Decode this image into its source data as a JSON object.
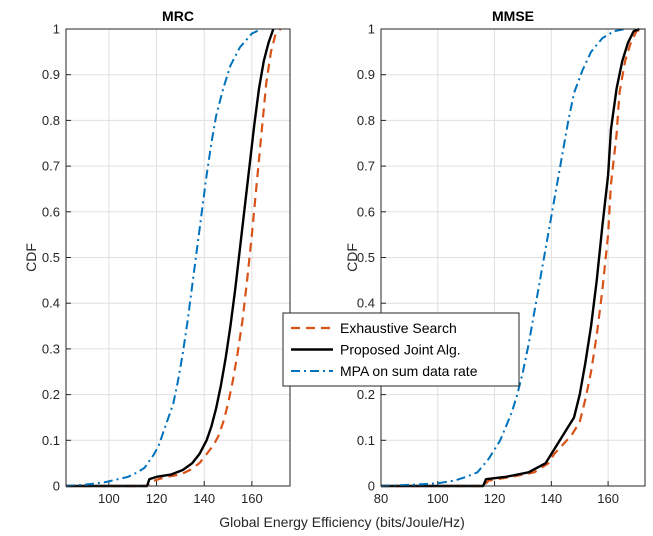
{
  "chart_data": [
    {
      "type": "line",
      "title": "MRC",
      "xlabel": "",
      "ylabel": "CDF",
      "xlim": [
        82,
        176
      ],
      "ylim": [
        0,
        1
      ],
      "xticks": [
        100,
        120,
        140,
        160
      ],
      "yticks": [
        0,
        0.1,
        0.2,
        0.3,
        0.4,
        0.5,
        0.6,
        0.7,
        0.8,
        0.9,
        1
      ],
      "grid": true,
      "series": [
        {
          "name": "Exhaustive Search",
          "color": "#D95319",
          "style": "dashed",
          "points": [
            [
              82,
              0
            ],
            [
              116,
              0
            ],
            [
              118,
              0.01
            ],
            [
              124,
              0.02
            ],
            [
              130,
              0.025
            ],
            [
              134,
              0.035
            ],
            [
              138,
              0.05
            ],
            [
              141,
              0.07
            ],
            [
              144,
              0.09
            ],
            [
              146,
              0.11
            ],
            [
              148,
              0.14
            ],
            [
              150,
              0.18
            ],
            [
              152,
              0.23
            ],
            [
              154,
              0.29
            ],
            [
              156,
              0.36
            ],
            [
              158,
              0.45
            ],
            [
              160,
              0.55
            ],
            [
              162,
              0.66
            ],
            [
              164,
              0.77
            ],
            [
              166,
              0.88
            ],
            [
              168,
              0.95
            ],
            [
              170,
              0.99
            ],
            [
              172,
              1
            ]
          ]
        },
        {
          "name": "Proposed Joint Alg.",
          "color": "#000000",
          "style": "solid",
          "points": [
            [
              82,
              0
            ],
            [
              116,
              0
            ],
            [
              117,
              0.015
            ],
            [
              120,
              0.02
            ],
            [
              126,
              0.025
            ],
            [
              131,
              0.035
            ],
            [
              135,
              0.05
            ],
            [
              138,
              0.07
            ],
            [
              141,
              0.1
            ],
            [
              143,
              0.13
            ],
            [
              145,
              0.17
            ],
            [
              147,
              0.22
            ],
            [
              149,
              0.28
            ],
            [
              151,
              0.35
            ],
            [
              153,
              0.43
            ],
            [
              155,
              0.52
            ],
            [
              157,
              0.61
            ],
            [
              159,
              0.7
            ],
            [
              161,
              0.79
            ],
            [
              163,
              0.87
            ],
            [
              165,
              0.93
            ],
            [
              167,
              0.97
            ],
            [
              169,
              1
            ]
          ]
        },
        {
          "name": "MPA on sum data rate",
          "color": "#0072BD",
          "style": "dashdot",
          "points": [
            [
              82,
              0
            ],
            [
              90,
              0.003
            ],
            [
              98,
              0.008
            ],
            [
              104,
              0.015
            ],
            [
              108,
              0.02
            ],
            [
              112,
              0.03
            ],
            [
              115,
              0.04
            ],
            [
              117,
              0.055
            ],
            [
              119,
              0.07
            ],
            [
              121,
              0.09
            ],
            [
              123,
              0.12
            ],
            [
              125,
              0.15
            ],
            [
              127,
              0.18
            ],
            [
              129,
              0.23
            ],
            [
              131,
              0.29
            ],
            [
              133,
              0.36
            ],
            [
              135,
              0.44
            ],
            [
              137,
              0.52
            ],
            [
              139,
              0.6
            ],
            [
              141,
              0.68
            ],
            [
              143,
              0.75
            ],
            [
              145,
              0.81
            ],
            [
              148,
              0.87
            ],
            [
              151,
              0.92
            ],
            [
              155,
              0.96
            ],
            [
              160,
              0.99
            ],
            [
              164,
              1
            ]
          ]
        }
      ]
    },
    {
      "type": "line",
      "title": "MMSE",
      "xlabel": "",
      "ylabel": "CDF",
      "xlim": [
        80,
        173
      ],
      "ylim": [
        0,
        1
      ],
      "xticks": [
        80,
        100,
        120,
        140,
        160
      ],
      "yticks": [
        0,
        0.1,
        0.2,
        0.3,
        0.4,
        0.5,
        0.6,
        0.7,
        0.8,
        0.9,
        1
      ],
      "grid": true,
      "series": [
        {
          "name": "Exhaustive Search",
          "color": "#D95319",
          "style": "dashed",
          "points": [
            [
              80,
              0
            ],
            [
              116,
              0
            ],
            [
              118,
              0.012
            ],
            [
              126,
              0.02
            ],
            [
              134,
              0.03
            ],
            [
              139,
              0.05
            ],
            [
              141,
              0.07
            ],
            [
              144,
              0.09
            ],
            [
              147,
              0.11
            ],
            [
              150,
              0.14
            ],
            [
              152,
              0.19
            ],
            [
              154,
              0.25
            ],
            [
              156,
              0.33
            ],
            [
              158,
              0.43
            ],
            [
              160,
              0.55
            ],
            [
              161,
              0.66
            ],
            [
              163,
              0.77
            ],
            [
              164,
              0.86
            ],
            [
              166,
              0.93
            ],
            [
              168,
              0.97
            ],
            [
              170,
              0.995
            ],
            [
              172,
              1
            ]
          ]
        },
        {
          "name": "Proposed Joint Alg.",
          "color": "#000000",
          "style": "solid",
          "points": [
            [
              80,
              0
            ],
            [
              116,
              0
            ],
            [
              117,
              0.015
            ],
            [
              124,
              0.02
            ],
            [
              132,
              0.03
            ],
            [
              138,
              0.05
            ],
            [
              140,
              0.07
            ],
            [
              142,
              0.09
            ],
            [
              145,
              0.12
            ],
            [
              148,
              0.15
            ],
            [
              150,
              0.2
            ],
            [
              152,
              0.27
            ],
            [
              154,
              0.35
            ],
            [
              156,
              0.45
            ],
            [
              158,
              0.57
            ],
            [
              160,
              0.68
            ],
            [
              161,
              0.78
            ],
            [
              163,
              0.87
            ],
            [
              165,
              0.93
            ],
            [
              167,
              0.97
            ],
            [
              169,
              0.995
            ],
            [
              171,
              1
            ]
          ]
        },
        {
          "name": "MPA on sum data rate",
          "color": "#0072BD",
          "style": "dashdot",
          "points": [
            [
              80,
              0
            ],
            [
              92,
              0.003
            ],
            [
              100,
              0.006
            ],
            [
              106,
              0.012
            ],
            [
              110,
              0.02
            ],
            [
              114,
              0.03
            ],
            [
              116,
              0.045
            ],
            [
              118,
              0.06
            ],
            [
              120,
              0.08
            ],
            [
              122,
              0.1
            ],
            [
              124,
              0.13
            ],
            [
              126,
              0.16
            ],
            [
              128,
              0.2
            ],
            [
              130,
              0.25
            ],
            [
              132,
              0.31
            ],
            [
              134,
              0.38
            ],
            [
              136,
              0.45
            ],
            [
              138,
              0.52
            ],
            [
              140,
              0.59
            ],
            [
              142,
              0.66
            ],
            [
              144,
              0.73
            ],
            [
              146,
              0.8
            ],
            [
              148,
              0.86
            ],
            [
              151,
              0.91
            ],
            [
              154,
              0.95
            ],
            [
              158,
              0.98
            ],
            [
              162,
              0.995
            ],
            [
              166,
              1
            ]
          ]
        }
      ]
    }
  ],
  "shared_xlabel": "Global Energy Efficiency (bits/Joule/Hz)",
  "legend": {
    "placement": "center",
    "entries": [
      {
        "label": "Exhaustive Search",
        "color": "#D95319",
        "style": "dashed"
      },
      {
        "label": "Proposed Joint Alg.",
        "color": "#000000",
        "style": "solid"
      },
      {
        "label": "MPA on sum data rate",
        "color": "#0072BD",
        "style": "dashdot"
      }
    ]
  }
}
